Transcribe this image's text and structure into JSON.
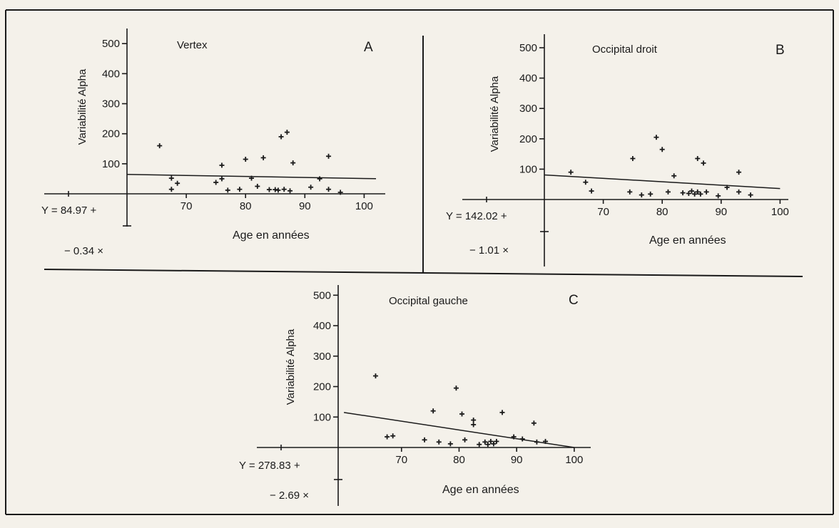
{
  "chart_data": [
    {
      "panel": "A",
      "type": "scatter",
      "title": "Vertex",
      "xlabel": "Age en années",
      "ylabel": "Variabilité Alpha",
      "x_ticks": [
        70,
        80,
        90,
        100
      ],
      "y_ticks": [
        100,
        200,
        300,
        400,
        500
      ],
      "xlim": [
        60,
        102
      ],
      "ylim": [
        0,
        500
      ],
      "equation": [
        "Y = 84.97 +",
        "− 0.34 ×"
      ],
      "regression": {
        "x": [
          60,
          102
        ],
        "y": [
          64.6,
          50.3
        ]
      },
      "points": [
        {
          "x": 65.5,
          "y": 160
        },
        {
          "x": 67.5,
          "y": 52
        },
        {
          "x": 67.5,
          "y": 15
        },
        {
          "x": 68.5,
          "y": 35
        },
        {
          "x": 75,
          "y": 38
        },
        {
          "x": 76,
          "y": 95
        },
        {
          "x": 76,
          "y": 50
        },
        {
          "x": 77,
          "y": 12
        },
        {
          "x": 79,
          "y": 15
        },
        {
          "x": 80,
          "y": 115
        },
        {
          "x": 81,
          "y": 52
        },
        {
          "x": 82,
          "y": 25
        },
        {
          "x": 83,
          "y": 120
        },
        {
          "x": 84,
          "y": 14
        },
        {
          "x": 85,
          "y": 14
        },
        {
          "x": 85.5,
          "y": 12
        },
        {
          "x": 86,
          "y": 190
        },
        {
          "x": 86.5,
          "y": 15
        },
        {
          "x": 87,
          "y": 205
        },
        {
          "x": 87.5,
          "y": 10
        },
        {
          "x": 88,
          "y": 103
        },
        {
          "x": 91,
          "y": 22
        },
        {
          "x": 92.5,
          "y": 50
        },
        {
          "x": 94,
          "y": 125
        },
        {
          "x": 94,
          "y": 15
        },
        {
          "x": 96,
          "y": 5
        }
      ]
    },
    {
      "panel": "B",
      "type": "scatter",
      "title": "Occipital droit",
      "xlabel": "Age en années",
      "ylabel": "Variabilité Alpha",
      "x_ticks": [
        70,
        80,
        90,
        100
      ],
      "y_ticks": [
        100,
        200,
        300,
        400,
        500
      ],
      "xlim": [
        60,
        102
      ],
      "ylim": [
        0,
        500
      ],
      "equation": [
        "Y = 142.02 +",
        "− 1.01 ×"
      ],
      "regression": {
        "x": [
          60,
          100
        ],
        "y": [
          81,
          36
        ]
      },
      "points": [
        {
          "x": 64.5,
          "y": 90
        },
        {
          "x": 67,
          "y": 57
        },
        {
          "x": 68,
          "y": 28
        },
        {
          "x": 74.5,
          "y": 25
        },
        {
          "x": 75,
          "y": 135
        },
        {
          "x": 76.5,
          "y": 15
        },
        {
          "x": 78,
          "y": 18
        },
        {
          "x": 79,
          "y": 205
        },
        {
          "x": 80,
          "y": 165
        },
        {
          "x": 81,
          "y": 25
        },
        {
          "x": 82,
          "y": 78
        },
        {
          "x": 83.5,
          "y": 22
        },
        {
          "x": 84.5,
          "y": 20
        },
        {
          "x": 85,
          "y": 28
        },
        {
          "x": 85.5,
          "y": 18
        },
        {
          "x": 86,
          "y": 25
        },
        {
          "x": 86,
          "y": 135
        },
        {
          "x": 86.5,
          "y": 18
        },
        {
          "x": 87,
          "y": 120
        },
        {
          "x": 87.5,
          "y": 25
        },
        {
          "x": 89.5,
          "y": 12
        },
        {
          "x": 91,
          "y": 40
        },
        {
          "x": 93,
          "y": 90
        },
        {
          "x": 93,
          "y": 25
        },
        {
          "x": 95,
          "y": 15
        }
      ]
    },
    {
      "panel": "C",
      "type": "scatter",
      "title": "Occipital gauche",
      "xlabel": "Age en années",
      "ylabel": "Variabilité Alpha",
      "x_ticks": [
        70,
        80,
        90,
        100
      ],
      "y_ticks": [
        100,
        200,
        300,
        400,
        500
      ],
      "xlim": [
        59,
        103
      ],
      "ylim": [
        0,
        500
      ],
      "equation": [
        "Y = 278.83 +",
        "− 2.69 ×"
      ],
      "regression": {
        "x": [
          60,
          100
        ],
        "y": [
          115,
          0
        ]
      },
      "points": [
        {
          "x": 65.5,
          "y": 235
        },
        {
          "x": 67.5,
          "y": 35
        },
        {
          "x": 68.5,
          "y": 38
        },
        {
          "x": 74,
          "y": 25
        },
        {
          "x": 75.5,
          "y": 120
        },
        {
          "x": 76.5,
          "y": 18
        },
        {
          "x": 78.5,
          "y": 12
        },
        {
          "x": 79.5,
          "y": 195
        },
        {
          "x": 80.5,
          "y": 110
        },
        {
          "x": 81,
          "y": 25
        },
        {
          "x": 82.5,
          "y": 90
        },
        {
          "x": 82.5,
          "y": 75
        },
        {
          "x": 83.5,
          "y": 10
        },
        {
          "x": 84.5,
          "y": 18
        },
        {
          "x": 85,
          "y": 10
        },
        {
          "x": 85.5,
          "y": 20
        },
        {
          "x": 86,
          "y": 12
        },
        {
          "x": 86.5,
          "y": 20
        },
        {
          "x": 87.5,
          "y": 115
        },
        {
          "x": 89.5,
          "y": 35
        },
        {
          "x": 91,
          "y": 28
        },
        {
          "x": 93,
          "y": 80
        },
        {
          "x": 93.5,
          "y": 18
        },
        {
          "x": 95,
          "y": 20
        }
      ]
    }
  ]
}
